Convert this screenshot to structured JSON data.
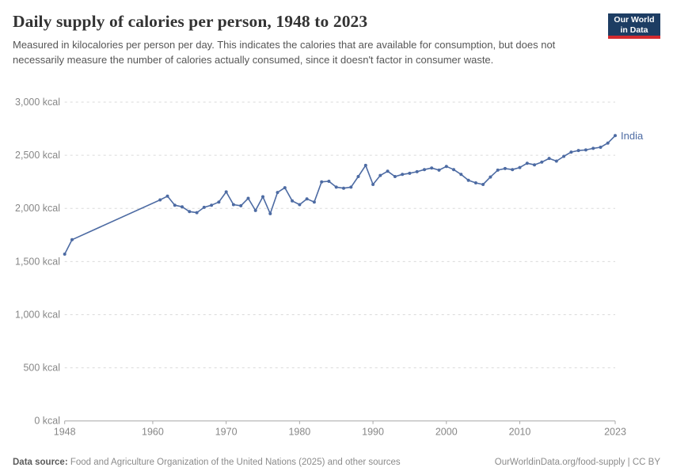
{
  "header": {
    "title": "Daily supply of calories per person, 1948 to 2023",
    "subtitle": "Measured in kilocalories per person per day. This indicates the calories that are available for consumption, but does not necessarily measure the number of calories actually consumed, since it doesn't factor in consumer waste.",
    "logo": {
      "line1": "Our World",
      "line2": "in Data"
    }
  },
  "chart_data": {
    "type": "line",
    "title": "Daily supply of calories per person, 1948 to 2023",
    "entity_label": "India",
    "line_color": "#4D6BA3",
    "grid": "horizontal-dashed",
    "xlim": [
      1948,
      2023
    ],
    "ylim": [
      0,
      3000
    ],
    "x_axis": {
      "ticks": [
        {
          "year": 1948,
          "label": "1948"
        },
        {
          "year": 1960,
          "label": "1960"
        },
        {
          "year": 1970,
          "label": "1970"
        },
        {
          "year": 1980,
          "label": "1980"
        },
        {
          "year": 1990,
          "label": "1990"
        },
        {
          "year": 2000,
          "label": "2000"
        },
        {
          "year": 2010,
          "label": "2010"
        },
        {
          "year": 2023,
          "label": "2023"
        }
      ]
    },
    "y_axis": {
      "unit": "kcal",
      "ticks": [
        {
          "value": 0,
          "label": "0 kcal"
        },
        {
          "value": 500,
          "label": "500 kcal"
        },
        {
          "value": 1000,
          "label": "1,000 kcal"
        },
        {
          "value": 1500,
          "label": "1,500 kcal"
        },
        {
          "value": 2000,
          "label": "2,000 kcal"
        },
        {
          "value": 2500,
          "label": "2,500 kcal"
        },
        {
          "value": 3000,
          "label": "3,000 kcal"
        }
      ]
    },
    "series": [
      {
        "name": "India",
        "points": [
          [
            1948,
            1570
          ],
          [
            1949,
            1705
          ],
          [
            1961,
            2080
          ],
          [
            1962,
            2115
          ],
          [
            1963,
            2030
          ],
          [
            1964,
            2015
          ],
          [
            1965,
            1970
          ],
          [
            1966,
            1960
          ],
          [
            1967,
            2010
          ],
          [
            1968,
            2030
          ],
          [
            1969,
            2060
          ],
          [
            1970,
            2155
          ],
          [
            1971,
            2035
          ],
          [
            1972,
            2025
          ],
          [
            1973,
            2095
          ],
          [
            1974,
            1980
          ],
          [
            1975,
            2110
          ],
          [
            1976,
            1950
          ],
          [
            1977,
            2150
          ],
          [
            1978,
            2195
          ],
          [
            1979,
            2070
          ],
          [
            1980,
            2035
          ],
          [
            1981,
            2090
          ],
          [
            1982,
            2060
          ],
          [
            1983,
            2250
          ],
          [
            1984,
            2255
          ],
          [
            1985,
            2200
          ],
          [
            1986,
            2190
          ],
          [
            1987,
            2200
          ],
          [
            1988,
            2300
          ],
          [
            1989,
            2405
          ],
          [
            1990,
            2225
          ],
          [
            1991,
            2310
          ],
          [
            1992,
            2350
          ],
          [
            1993,
            2300
          ],
          [
            1994,
            2320
          ],
          [
            1995,
            2330
          ],
          [
            1996,
            2345
          ],
          [
            1997,
            2365
          ],
          [
            1998,
            2380
          ],
          [
            1999,
            2360
          ],
          [
            2000,
            2395
          ],
          [
            2001,
            2365
          ],
          [
            2002,
            2320
          ],
          [
            2003,
            2265
          ],
          [
            2004,
            2240
          ],
          [
            2005,
            2225
          ],
          [
            2006,
            2295
          ],
          [
            2007,
            2360
          ],
          [
            2008,
            2375
          ],
          [
            2009,
            2365
          ],
          [
            2010,
            2385
          ],
          [
            2011,
            2425
          ],
          [
            2012,
            2410
          ],
          [
            2013,
            2435
          ],
          [
            2014,
            2470
          ],
          [
            2015,
            2445
          ],
          [
            2016,
            2490
          ],
          [
            2017,
            2530
          ],
          [
            2018,
            2545
          ],
          [
            2019,
            2550
          ],
          [
            2020,
            2565
          ],
          [
            2021,
            2575
          ],
          [
            2022,
            2615
          ],
          [
            2023,
            2685
          ]
        ]
      }
    ]
  },
  "footer": {
    "source_label": "Data source:",
    "source_text": " Food and Agriculture Organization of the United Nations (2025) and other sources",
    "link_text": "OurWorldinData.org/food-supply | CC BY"
  },
  "colors": {
    "line": "#4D6BA3",
    "gridline": "#dadada",
    "axis": "#a7a7a7",
    "tick_label": "#878787",
    "logo_bg": "#1d3d63",
    "logo_red": "#d42b2f"
  }
}
